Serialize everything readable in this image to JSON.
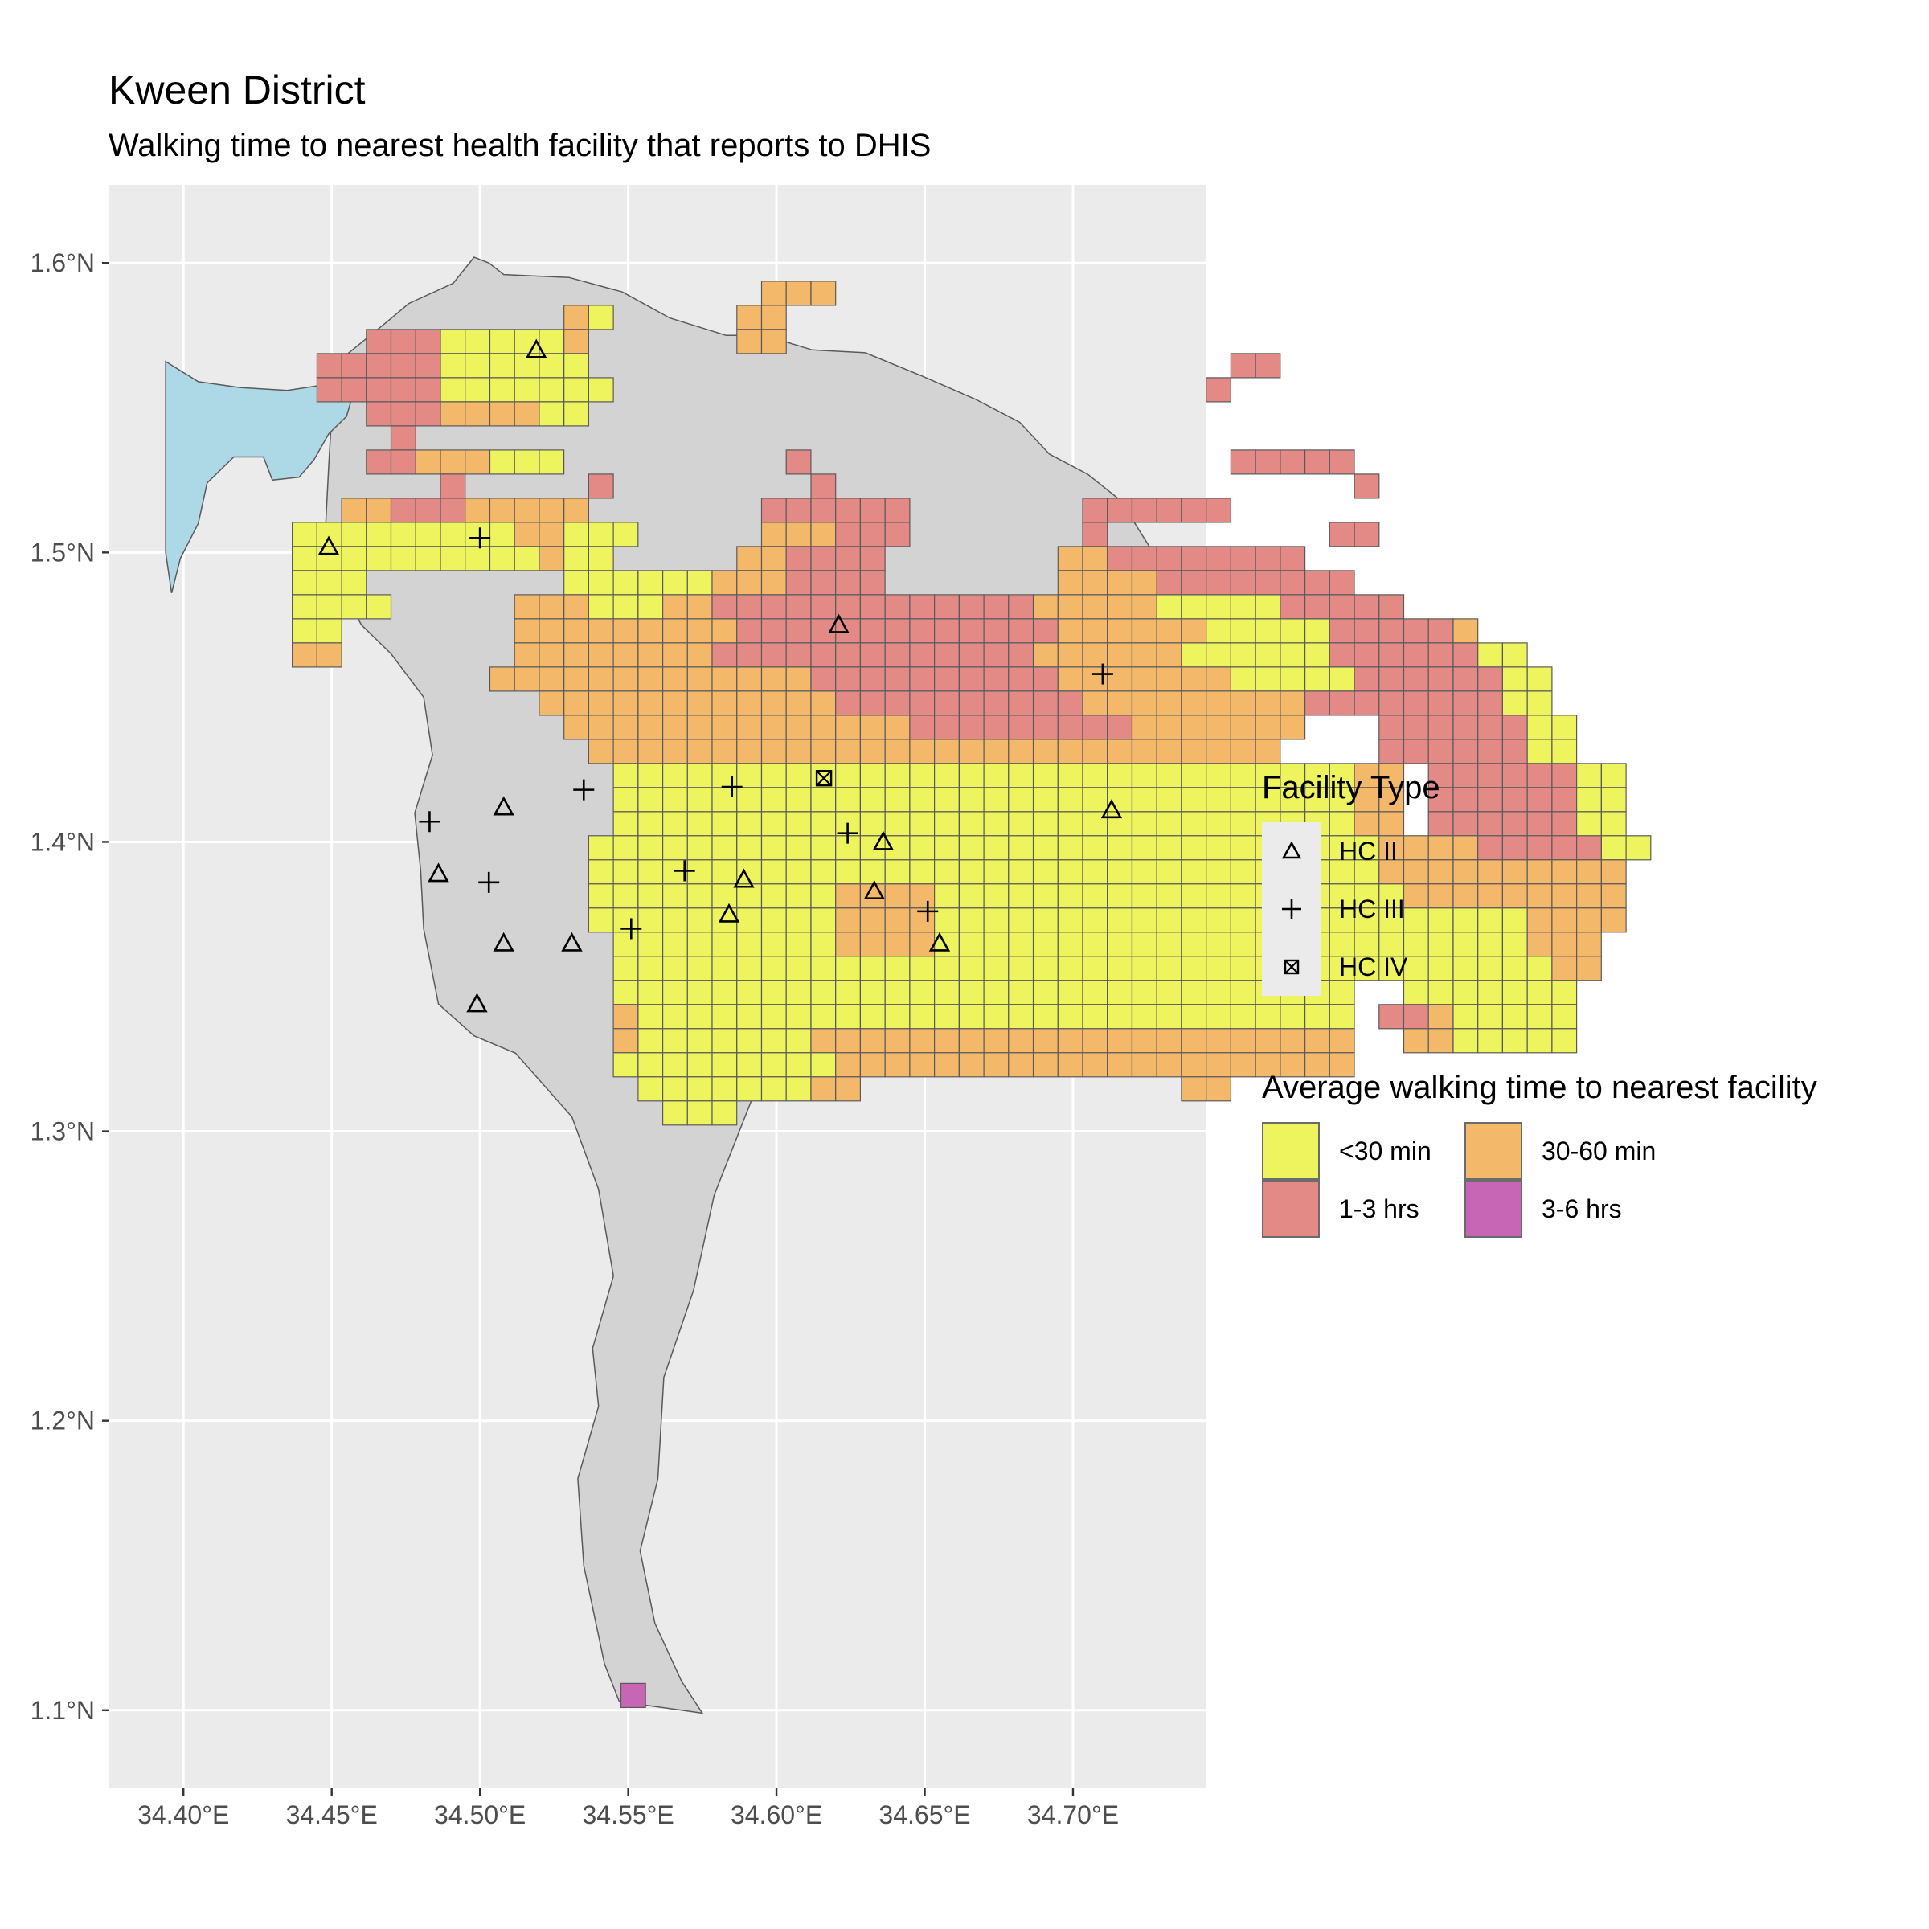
{
  "title": "Kween District",
  "subtitle": "Walking time to nearest health facility that reports to DHIS",
  "colors": {
    "panel": "#ebebeb",
    "grid": "#ffffff",
    "district": "#d3d3d3",
    "lake": "#add8e6",
    "lt30": "#eef45e",
    "t30_60": "#f4b86b",
    "t1_3": "#e38a86",
    "t3_6": "#c766b4"
  },
  "chart_data": {
    "type": "map",
    "xlim": [
      34.375,
      34.745
    ],
    "ylim": [
      1.073,
      1.627
    ],
    "x_ticks": [
      34.4,
      34.45,
      34.5,
      34.55,
      34.6,
      34.65,
      34.7
    ],
    "x_tick_labels": [
      "34.40°E",
      "34.45°E",
      "34.50°E",
      "34.55°E",
      "34.60°E",
      "34.65°E",
      "34.70°E"
    ],
    "y_ticks": [
      1.1,
      1.2,
      1.3,
      1.4,
      1.5,
      1.6
    ],
    "y_tick_labels": [
      "1.1°N",
      "1.2°N",
      "1.3°N",
      "1.4°N",
      "1.5°N",
      "1.6°N"
    ],
    "cell_size_deg": 0.00833,
    "grid_origin": {
      "lon": 34.4367,
      "lat": 1.5937
    },
    "category_codes": {
      "Y": "<30 min",
      "O": "30-60 min",
      "R": "1-3 hrs",
      "P": "3-6 hrs"
    },
    "grid_rows": [
      "...................OOO...........................",
      "...........OY.....OO.............................",
      "...RRRYYYYYO......OO.............................",
      ".RRRRRYYYYYY..........................RR.........",
      ".RRRRRYYYYYYY........................R...........",
      "...RRROOOOYY......................................",
      "....R...........................................",
      "...RROOOYYY.........R.................RRRRR......",
      "......R.....R........R.....................R....",
      "..OORRROOOOO.......RRRRRR.......RRRRRR.........",
      "YYYYYYYYYOOYYY.....OOORRR.......R.........RR....",
      "YYYYYYYYYYOYY.....OORRRR.......OORRRRRRRR......",
      "YYY........YYYYYYOOORRRR.......OOOORRRRRRRR.....",
      "YYYY.....OOOYYYOORRRRRRRRRRRRROOOOOYYYYYRRRRR....",
      "YY.......OOOOOOOOORRRRRRRRRRRRROOOOOOYYYYYRRRRRO..",
      "OO.......OOOOOOOORRRRRRRRRRRRROOOOOOYYYYYYRRRRRRYY",
      "........OOOOOOOOOOOOORRRRRRRRRROOOOOOOYYYYYRRRRRRYY",
      "..........OOOOOOOOOOOORRRRRRRRRROOOOOOOOORRRRRRRRYY",
      "...........OOOOOOOOOOOOOORRRRRRRRROOOOOOO...RRRRRRYY",
      "............OOOOOOOOOOOOOOOOOOOOOOOOOOOO....RRRRRRYY",
      ".............YYYYYYYYYYYYYYYYYYYYYYYYYYYYYYOO.RRRRRRYY",
      ".............YYYYYYYYYYYYYYYYYYYYYYYYYYYYYYOO.RRRRRRYY",
      ".............YYYYYYYYYYYYYYYYYYYYYYYYYYYYYYOO.RRRRRRYY",
      "............YYYYYYYYYYYYYYYYYYYYYYYYYYYYYYYYOOOORRRRRYY",
      "............YYYYYYYYYYYYYYYYYYYYYYYYYYYYYYYYOOOOOOOOOO",
      "............YYYYYYYYYYOOOOYYYYYYYYYYYYYYYYYYYOOOOOOOOO",
      "............YYYYYYYYYYOOOOYYYYYYYYYYYYYYYYYYYYYYYYOOOO",
      ".............YYYYYYYYYOOOOYYYYYYYYYYYYYYYYYYYYYYYYOOO",
      ".............YYYYYYYYYYYYYYYYYYYYYYYYYYYYYYYYYYYYYYOO",
      ".............YYYYYYYYYYYYYYYYYYYYYYYYYYYYYY..YYYYYYY",
      ".............OYYYYYYYYYYYYYYYYYYYYYYYYYYYYY.RROYYYYY",
      ".............OYYYYYYYOOOOOOOOOOOOOOOOOOOOOO..OOYYYYY",
      ".............YYYYYYYYYOOOOOOOOOOOOOOOOOOOOO",
      "..............YYYYYYYOO.............OO",
      "...............YYY"
    ],
    "special_cells": [
      {
        "lon": 34.5517,
        "lat": 1.1051,
        "category": "P"
      }
    ],
    "facilities": [
      {
        "type": "HC II",
        "lon": 34.519,
        "lat": 1.57
      },
      {
        "type": "HC II",
        "lon": 34.449,
        "lat": 1.502
      },
      {
        "type": "HC III",
        "lon": 34.5,
        "lat": 1.505
      },
      {
        "type": "HC II",
        "lon": 34.621,
        "lat": 1.475
      },
      {
        "type": "HC III",
        "lon": 34.71,
        "lat": 1.458
      },
      {
        "type": "HC IV",
        "lon": 34.616,
        "lat": 1.422
      },
      {
        "type": "HC III",
        "lon": 34.535,
        "lat": 1.418
      },
      {
        "type": "HC III",
        "lon": 34.585,
        "lat": 1.419
      },
      {
        "type": "HC II",
        "lon": 34.508,
        "lat": 1.412
      },
      {
        "type": "HC II",
        "lon": 34.713,
        "lat": 1.411
      },
      {
        "type": "HC III",
        "lon": 34.483,
        "lat": 1.407
      },
      {
        "type": "HC III",
        "lon": 34.624,
        "lat": 1.403
      },
      {
        "type": "HC II",
        "lon": 34.636,
        "lat": 1.4
      },
      {
        "type": "HC II",
        "lon": 34.486,
        "lat": 1.389
      },
      {
        "type": "HC III",
        "lon": 34.503,
        "lat": 1.386
      },
      {
        "type": "HC III",
        "lon": 34.569,
        "lat": 1.39
      },
      {
        "type": "HC II",
        "lon": 34.589,
        "lat": 1.387
      },
      {
        "type": "HC II",
        "lon": 34.633,
        "lat": 1.383
      },
      {
        "type": "HC II",
        "lon": 34.584,
        "lat": 1.375
      },
      {
        "type": "HC III",
        "lon": 34.651,
        "lat": 1.376
      },
      {
        "type": "HC III",
        "lon": 34.551,
        "lat": 1.37
      },
      {
        "type": "HC II",
        "lon": 34.508,
        "lat": 1.365
      },
      {
        "type": "HC II",
        "lon": 34.531,
        "lat": 1.365
      },
      {
        "type": "HC II",
        "lon": 34.655,
        "lat": 1.365
      },
      {
        "type": "HC II",
        "lon": 34.499,
        "lat": 1.344
      }
    ],
    "district_outline": [
      [
        34.451,
        1.565
      ],
      [
        34.469,
        1.58
      ],
      [
        34.476,
        1.586
      ],
      [
        34.491,
        1.593
      ],
      [
        34.498,
        1.602
      ],
      [
        34.503,
        1.6
      ],
      [
        34.508,
        1.596
      ],
      [
        34.53,
        1.595
      ],
      [
        34.548,
        1.59
      ],
      [
        34.564,
        1.581
      ],
      [
        34.583,
        1.575
      ],
      [
        34.596,
        1.575
      ],
      [
        34.612,
        1.57
      ],
      [
        34.63,
        1.569
      ],
      [
        34.649,
        1.561
      ],
      [
        34.667,
        1.553
      ],
      [
        34.682,
        1.545
      ],
      [
        34.692,
        1.534
      ],
      [
        34.705,
        1.527
      ],
      [
        34.716,
        1.518
      ],
      [
        34.727,
        1.5
      ],
      [
        34.733,
        1.478
      ],
      [
        34.735,
        1.458
      ],
      [
        34.734,
        1.435
      ],
      [
        34.729,
        1.415
      ],
      [
        34.717,
        1.399
      ],
      [
        34.7,
        1.388
      ],
      [
        34.683,
        1.381
      ],
      [
        34.665,
        1.369
      ],
      [
        34.648,
        1.356
      ],
      [
        34.623,
        1.351
      ],
      [
        34.607,
        1.345
      ],
      [
        34.599,
        1.33
      ],
      [
        34.589,
        1.304
      ],
      [
        34.579,
        1.278
      ],
      [
        34.572,
        1.245
      ],
      [
        34.562,
        1.215
      ],
      [
        34.56,
        1.18
      ],
      [
        34.554,
        1.155
      ],
      [
        34.559,
        1.13
      ],
      [
        34.568,
        1.11
      ],
      [
        34.575,
        1.099
      ],
      [
        34.547,
        1.103
      ],
      [
        34.542,
        1.116
      ],
      [
        34.535,
        1.15
      ],
      [
        34.533,
        1.18
      ],
      [
        34.54,
        1.205
      ],
      [
        34.538,
        1.225
      ],
      [
        34.545,
        1.25
      ],
      [
        34.54,
        1.28
      ],
      [
        34.531,
        1.305
      ],
      [
        34.512,
        1.327
      ],
      [
        34.498,
        1.333
      ],
      [
        34.486,
        1.344
      ],
      [
        34.481,
        1.37
      ],
      [
        34.48,
        1.39
      ],
      [
        34.478,
        1.41
      ],
      [
        34.484,
        1.43
      ],
      [
        34.481,
        1.45
      ],
      [
        34.47,
        1.465
      ],
      [
        34.46,
        1.475
      ],
      [
        34.452,
        1.49
      ],
      [
        34.448,
        1.51
      ],
      [
        34.449,
        1.53
      ],
      [
        34.451,
        1.565
      ]
    ],
    "lake_outline": [
      [
        34.394,
        1.566
      ],
      [
        34.405,
        1.559
      ],
      [
        34.419,
        1.557
      ],
      [
        34.435,
        1.556
      ],
      [
        34.448,
        1.558
      ],
      [
        34.457,
        1.554
      ],
      [
        34.455,
        1.547
      ],
      [
        34.449,
        1.541
      ],
      [
        34.444,
        1.532
      ],
      [
        34.439,
        1.526
      ],
      [
        34.43,
        1.525
      ],
      [
        34.427,
        1.533
      ],
      [
        34.417,
        1.533
      ],
      [
        34.408,
        1.524
      ],
      [
        34.405,
        1.51
      ],
      [
        34.399,
        1.498
      ],
      [
        34.396,
        1.486
      ],
      [
        34.394,
        1.5
      ],
      [
        34.394,
        1.566
      ]
    ]
  },
  "legend": {
    "facility_title": "Facility Type",
    "facility_items": [
      {
        "label": "HC II",
        "shape": "triangle-open"
      },
      {
        "label": "HC III",
        "shape": "plus"
      },
      {
        "label": "HC IV",
        "shape": "square-x"
      }
    ],
    "time_title": "Average walking time to nearest facility",
    "time_items": [
      {
        "label": "<30 min",
        "code": "Y"
      },
      {
        "label": "30-60 min",
        "code": "O"
      },
      {
        "label": "1-3 hrs",
        "code": "R"
      },
      {
        "label": "3-6 hrs",
        "code": "P"
      }
    ]
  }
}
